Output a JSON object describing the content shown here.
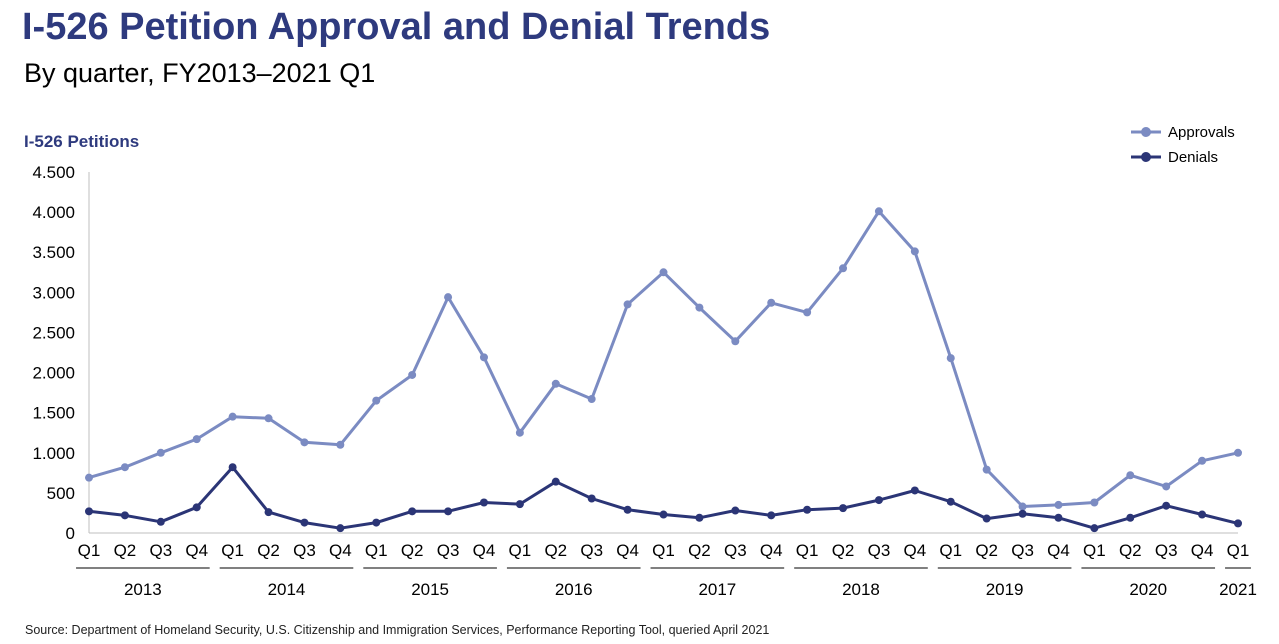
{
  "header": {
    "title": "I-526 Petition Approval and Denial Trends",
    "subtitle": "By quarter, FY2013–2021 Q1",
    "y_unit_label": "I-526 Petitions"
  },
  "footer": {
    "source": "Source: Department of Homeland Security, U.S. Citizenship and Immigration Services, Performance Reporting Tool, queried April 2021"
  },
  "colors": {
    "title": "#2e3a7e",
    "approvals": "#7b8bc2",
    "denials": "#2b3576"
  },
  "chart_data": {
    "type": "line",
    "title": "I-526 Petition Approval and Denial Trends",
    "subtitle": "By quarter, FY2013–2021 Q1",
    "ylabel": "I-526 Petitions",
    "xlabel": "",
    "ylim": [
      0,
      4500
    ],
    "yticks": [
      0,
      500,
      1000,
      1500,
      2000,
      2500,
      3000,
      3500,
      4000,
      4500
    ],
    "ytick_labels": [
      "0",
      "500",
      "1.000",
      "1.500",
      "2.000",
      "2.500",
      "3.000",
      "3.500",
      "4.000",
      "4.500"
    ],
    "grid": false,
    "legend_position": "top-right",
    "categories": [
      "Q1",
      "Q2",
      "Q3",
      "Q4",
      "Q1",
      "Q2",
      "Q3",
      "Q4",
      "Q1",
      "Q2",
      "Q3",
      "Q4",
      "Q1",
      "Q2",
      "Q3",
      "Q4",
      "Q1",
      "Q2",
      "Q3",
      "Q4",
      "Q1",
      "Q2",
      "Q3",
      "Q4",
      "Q1",
      "Q2",
      "Q3",
      "Q4",
      "Q1",
      "Q2",
      "Q3",
      "Q4",
      "Q1"
    ],
    "year_groups": [
      {
        "label": "2013",
        "quarters": 4
      },
      {
        "label": "2014",
        "quarters": 4
      },
      {
        "label": "2015",
        "quarters": 4
      },
      {
        "label": "2016",
        "quarters": 4
      },
      {
        "label": "2017",
        "quarters": 4
      },
      {
        "label": "2018",
        "quarters": 4
      },
      {
        "label": "2019",
        "quarters": 4
      },
      {
        "label": "2020",
        "quarters": 4
      },
      {
        "label": "2021",
        "quarters": 1
      }
    ],
    "series": [
      {
        "name": "Approvals",
        "color": "#7b8bc2",
        "values": [
          690,
          820,
          1000,
          1170,
          1450,
          1430,
          1130,
          1100,
          1650,
          1970,
          2940,
          2190,
          1250,
          1860,
          1670,
          2850,
          3250,
          2810,
          2390,
          2870,
          2750,
          3300,
          4010,
          3510,
          2180,
          790,
          330,
          350,
          380,
          720,
          580,
          900,
          1000
        ]
      },
      {
        "name": "Denials",
        "color": "#2b3576",
        "values": [
          270,
          220,
          140,
          320,
          820,
          260,
          130,
          60,
          130,
          270,
          270,
          380,
          360,
          640,
          430,
          290,
          230,
          190,
          280,
          220,
          290,
          310,
          410,
          530,
          390,
          180,
          240,
          190,
          60,
          190,
          340,
          230,
          120
        ]
      }
    ]
  }
}
